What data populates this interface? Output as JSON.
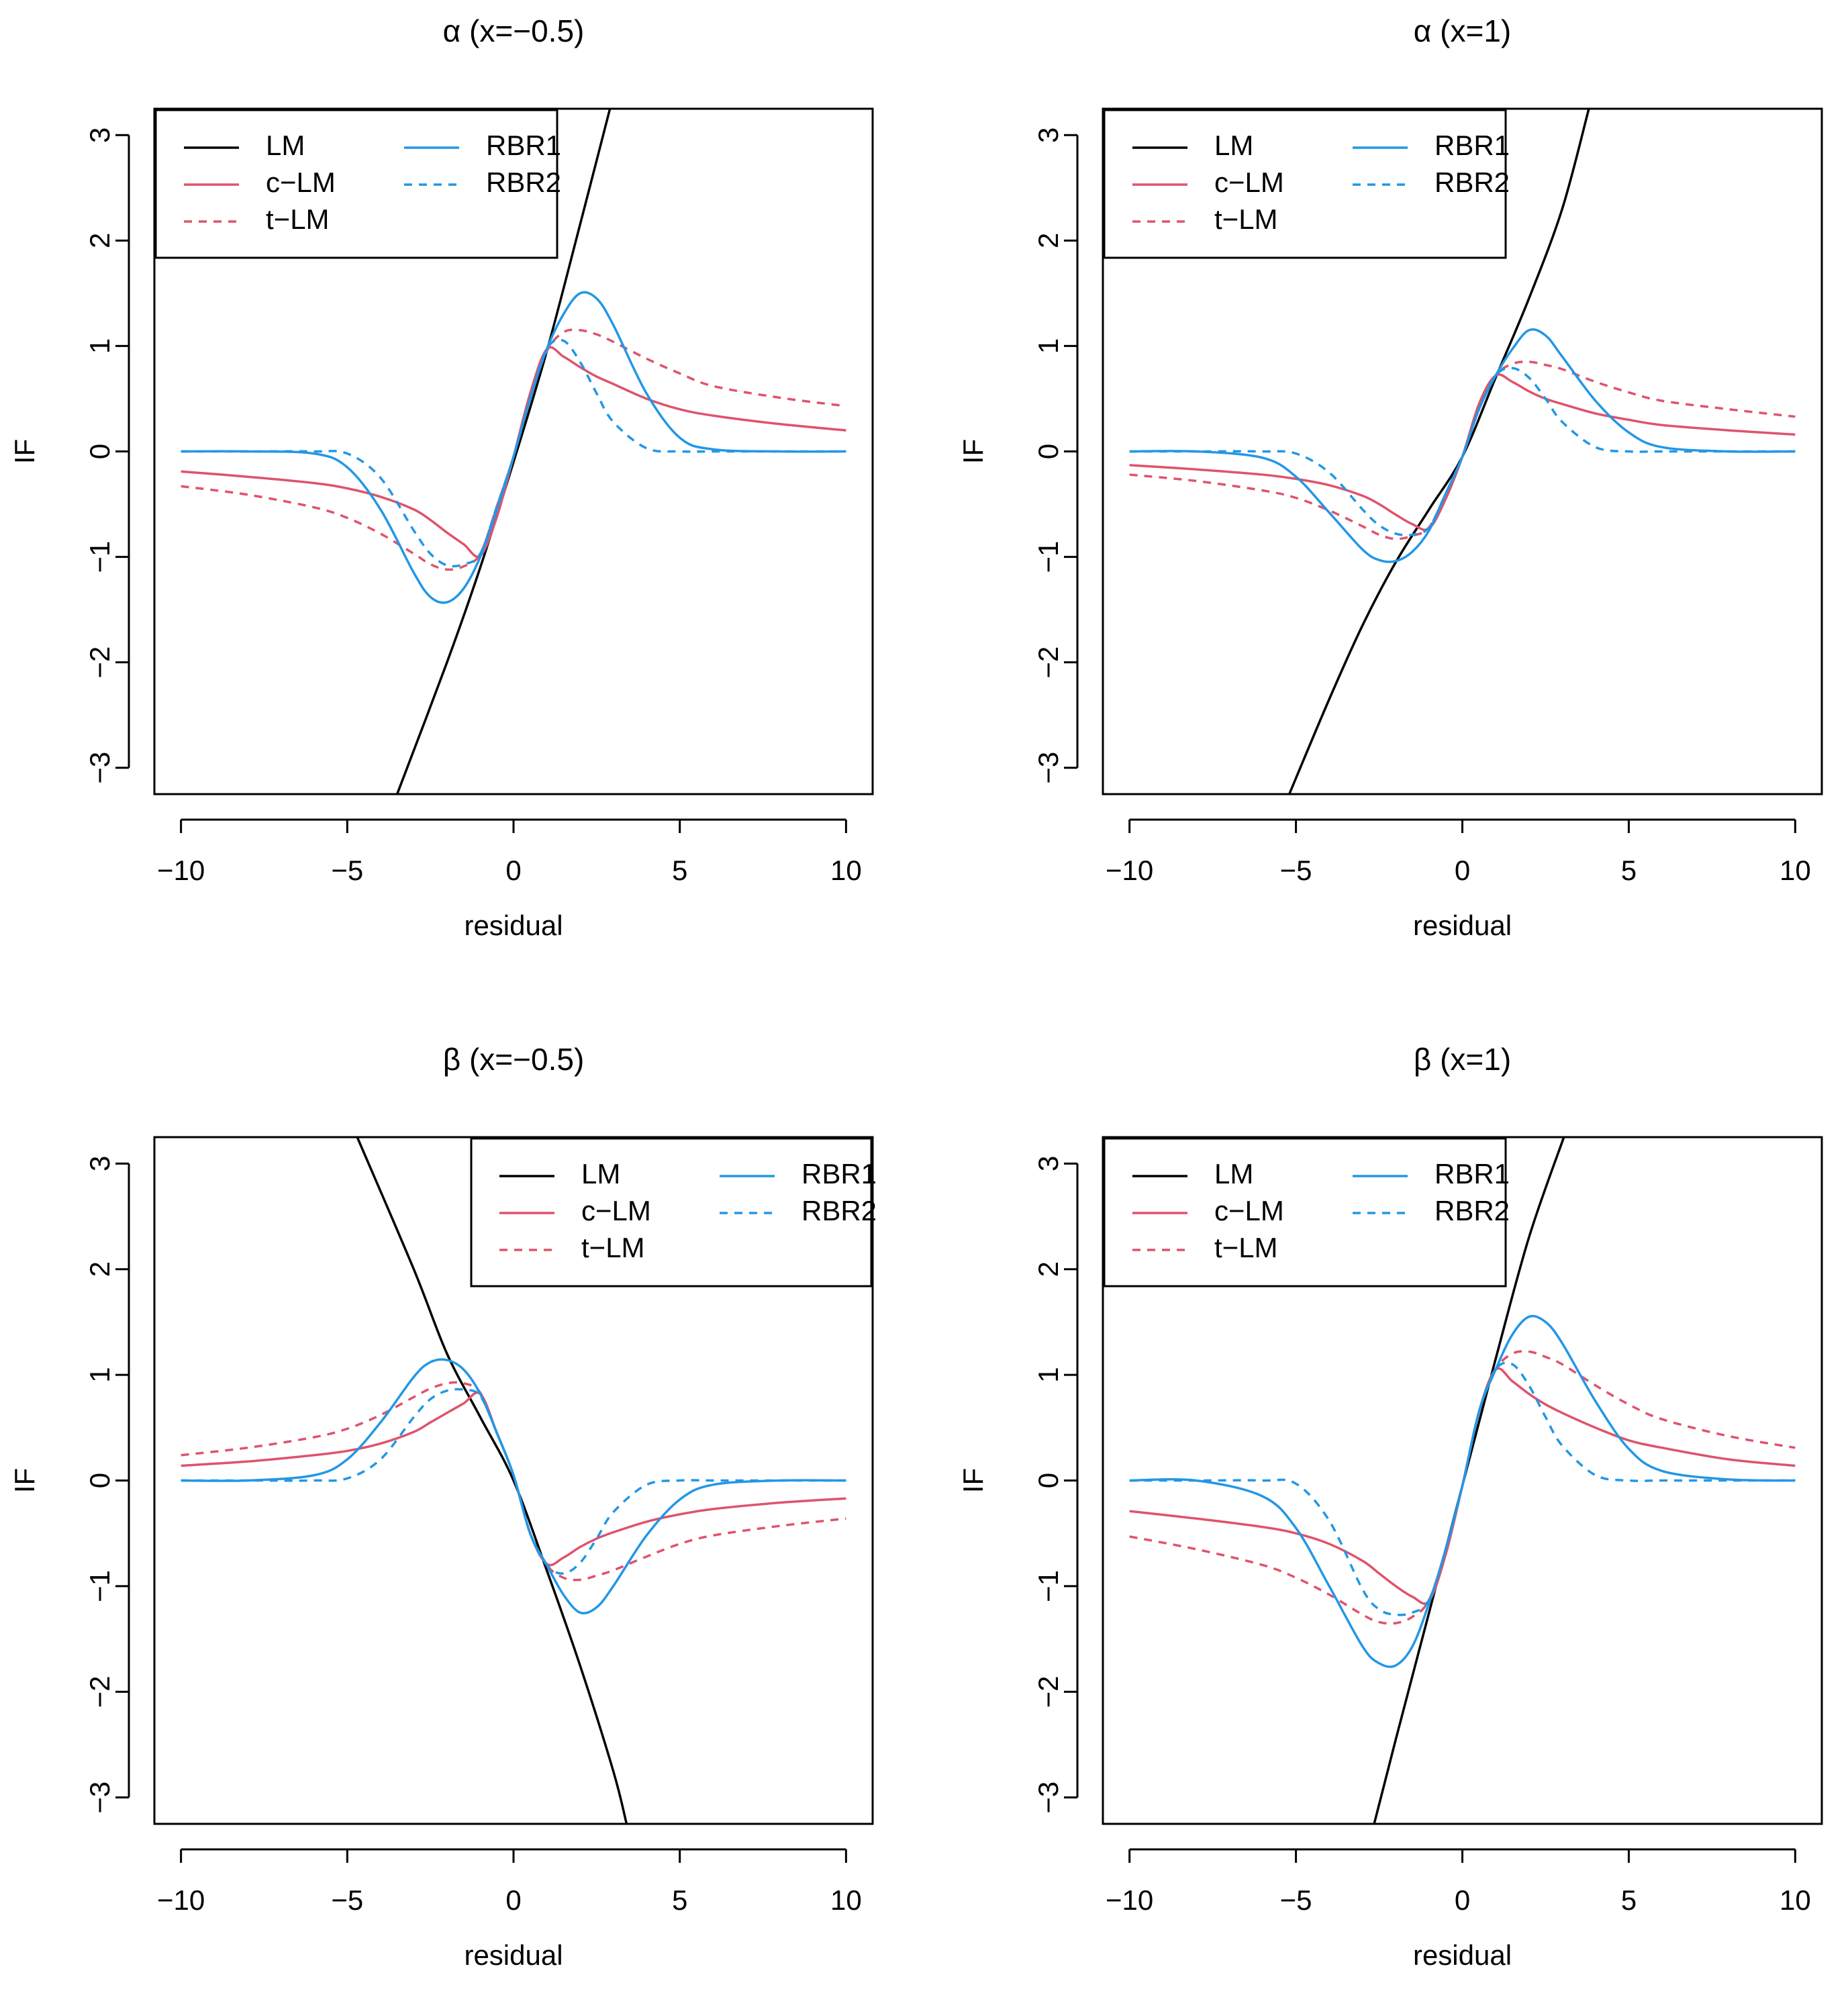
{
  "figure": {
    "xlabel": "residual",
    "ylabel": "IF",
    "xticks": [
      "−10",
      "−5",
      "0",
      "5",
      "10"
    ],
    "yticks": [
      "−3",
      "−2",
      "−1",
      "0",
      "1",
      "2",
      "3"
    ],
    "legend_labels": [
      "LM",
      "c−LM",
      "t−LM",
      "RBR1",
      "RBR2"
    ],
    "colors": {
      "LM": "#000000",
      "cLM": "#DF536B",
      "tLM": "#DF536B",
      "RBR1": "#2297E6",
      "RBR2": "#2297E6"
    }
  },
  "chart_data": [
    {
      "type": "line",
      "title": "α (x=−0.5)",
      "xlabel": "residual",
      "ylabel": "IF",
      "xlim": [
        -10.8,
        10.8
      ],
      "ylim": [
        -3.25,
        3.25
      ],
      "legend": "top-left",
      "x": [
        -10,
        -8,
        -6,
        -5,
        -4,
        -3,
        -2.5,
        -2,
        -1.5,
        -1,
        -0.5,
        0,
        0.5,
        1,
        1.5,
        2,
        2.5,
        3,
        4,
        5,
        6,
        8,
        10
      ],
      "series": [
        {
          "name": "LM",
          "style": "solid",
          "points": [
            [
              -3.5,
              -3.25
            ],
            [
              -2,
              -2.0
            ],
            [
              -1,
              -1.1
            ],
            [
              0,
              -0.1
            ],
            [
              1,
              0.95
            ],
            [
              2,
              2.15
            ],
            [
              2.9,
              3.25
            ]
          ]
        },
        {
          "name": "c−LM",
          "style": "solid",
          "values": [
            -0.19,
            -0.24,
            -0.3,
            -0.35,
            -0.43,
            -0.55,
            -0.65,
            -0.77,
            -0.88,
            -0.99,
            -0.62,
            -0.05,
            0.55,
            0.97,
            0.9,
            0.8,
            0.71,
            0.64,
            0.5,
            0.4,
            0.34,
            0.26,
            0.2
          ]
        },
        {
          "name": "t−LM",
          "style": "dashed",
          "values": [
            -0.33,
            -0.41,
            -0.53,
            -0.63,
            -0.78,
            -0.97,
            -1.07,
            -1.12,
            -1.09,
            -0.97,
            -0.52,
            -0.05,
            0.5,
            0.95,
            1.13,
            1.15,
            1.11,
            1.04,
            0.88,
            0.74,
            0.62,
            0.51,
            0.43
          ]
        },
        {
          "name": "RBR1",
          "style": "solid",
          "values": [
            0,
            0,
            -0.02,
            -0.15,
            -0.55,
            -1.15,
            -1.38,
            -1.43,
            -1.3,
            -1.0,
            -0.55,
            -0.05,
            0.5,
            0.97,
            1.3,
            1.5,
            1.45,
            1.2,
            0.55,
            0.13,
            0.02,
            0,
            0
          ]
        },
        {
          "name": "RBR2",
          "style": "dashed",
          "values": [
            0,
            0,
            0,
            -0.02,
            -0.25,
            -0.75,
            -0.97,
            -1.08,
            -1.07,
            -0.97,
            -0.52,
            -0.05,
            0.5,
            0.97,
            1.05,
            0.85,
            0.55,
            0.28,
            0.03,
            0,
            0,
            0,
            0
          ]
        }
      ]
    },
    {
      "type": "line",
      "title": "α (x=1)",
      "xlabel": "residual",
      "ylabel": "IF",
      "xlim": [
        -10.8,
        10.8
      ],
      "ylim": [
        -3.25,
        3.25
      ],
      "legend": "top-left",
      "x": [
        -10,
        -8,
        -6,
        -5,
        -4,
        -3,
        -2.5,
        -2,
        -1.5,
        -1,
        -0.5,
        0,
        0.5,
        1,
        1.5,
        2,
        2.5,
        3,
        4,
        5,
        6,
        8,
        10
      ],
      "series": [
        {
          "name": "LM",
          "style": "solid",
          "points": [
            [
              -5.2,
              -3.25
            ],
            [
              -4,
              -2.35
            ],
            [
              -3,
              -1.65
            ],
            [
              -2,
              -1.05
            ],
            [
              -1,
              -0.55
            ],
            [
              0,
              -0.05
            ],
            [
              1,
              0.7
            ],
            [
              2,
              1.45
            ],
            [
              3,
              2.3
            ],
            [
              3.8,
              3.25
            ]
          ]
        },
        {
          "name": "c−LM",
          "style": "solid",
          "values": [
            -0.13,
            -0.17,
            -0.22,
            -0.26,
            -0.32,
            -0.42,
            -0.5,
            -0.6,
            -0.69,
            -0.73,
            -0.45,
            -0.05,
            0.45,
            0.72,
            0.66,
            0.57,
            0.5,
            0.45,
            0.36,
            0.3,
            0.25,
            0.2,
            0.16
          ]
        },
        {
          "name": "t−LM",
          "style": "dashed",
          "values": [
            -0.22,
            -0.28,
            -0.37,
            -0.44,
            -0.56,
            -0.71,
            -0.79,
            -0.83,
            -0.8,
            -0.72,
            -0.4,
            -0.05,
            0.4,
            0.72,
            0.83,
            0.85,
            0.82,
            0.78,
            0.66,
            0.56,
            0.48,
            0.4,
            0.33
          ]
        },
        {
          "name": "RBR1",
          "style": "solid",
          "values": [
            0,
            0,
            -0.06,
            -0.24,
            -0.58,
            -0.93,
            -1.03,
            -1.04,
            -0.95,
            -0.75,
            -0.4,
            -0.05,
            0.4,
            0.72,
            0.97,
            1.15,
            1.1,
            0.9,
            0.48,
            0.18,
            0.04,
            0,
            0
          ]
        },
        {
          "name": "RBR2",
          "style": "dashed",
          "values": [
            0,
            0,
            0,
            -0.02,
            -0.2,
            -0.55,
            -0.7,
            -0.78,
            -0.79,
            -0.72,
            -0.4,
            -0.05,
            0.4,
            0.72,
            0.79,
            0.7,
            0.5,
            0.28,
            0.04,
            0,
            0,
            0,
            0
          ]
        }
      ]
    },
    {
      "type": "line",
      "title": "β (x=−0.5)",
      "xlabel": "residual",
      "ylabel": "IF",
      "xlim": [
        -10.8,
        10.8
      ],
      "ylim": [
        -3.25,
        3.25
      ],
      "legend": "top-right",
      "x": [
        -10,
        -8,
        -6,
        -5,
        -4,
        -3,
        -2.5,
        -2,
        -1.5,
        -1,
        -0.5,
        0,
        0.5,
        1,
        1.5,
        2,
        2.5,
        3,
        4,
        5,
        6,
        8,
        10
      ],
      "series": [
        {
          "name": "LM",
          "style": "solid",
          "points": [
            [
              -4.7,
              3.25
            ],
            [
              -3,
              2.0
            ],
            [
              -2,
              1.2
            ],
            [
              -1,
              0.6
            ],
            [
              0,
              0.0
            ],
            [
              1,
              -0.85
            ],
            [
              2,
              -1.75
            ],
            [
              3,
              -2.75
            ],
            [
              3.4,
              -3.25
            ]
          ]
        },
        {
          "name": "c−LM",
          "style": "solid",
          "values": [
            0.14,
            0.18,
            0.24,
            0.28,
            0.35,
            0.46,
            0.55,
            0.64,
            0.73,
            0.82,
            0.45,
            0.05,
            -0.5,
            -0.79,
            -0.73,
            -0.63,
            -0.55,
            -0.49,
            -0.39,
            -0.32,
            -0.27,
            -0.21,
            -0.17
          ]
        },
        {
          "name": "t−LM",
          "style": "dashed",
          "values": [
            0.24,
            0.31,
            0.41,
            0.49,
            0.62,
            0.79,
            0.87,
            0.92,
            0.92,
            0.83,
            0.45,
            0.05,
            -0.5,
            -0.8,
            -0.92,
            -0.94,
            -0.9,
            -0.85,
            -0.72,
            -0.6,
            -0.52,
            -0.43,
            -0.36
          ]
        },
        {
          "name": "RBR1",
          "style": "solid",
          "values": [
            0,
            0,
            0.05,
            0.2,
            0.55,
            0.98,
            1.12,
            1.14,
            1.05,
            0.82,
            0.45,
            0.05,
            -0.5,
            -0.8,
            -1.08,
            -1.25,
            -1.2,
            -1.0,
            -0.52,
            -0.18,
            -0.04,
            0,
            0
          ]
        },
        {
          "name": "RBR2",
          "style": "dashed",
          "values": [
            0,
            0,
            0,
            0.02,
            0.2,
            0.6,
            0.77,
            0.85,
            0.86,
            0.8,
            0.45,
            0.05,
            -0.5,
            -0.8,
            -0.88,
            -0.78,
            -0.55,
            -0.3,
            -0.04,
            0,
            0,
            0,
            0
          ]
        }
      ]
    },
    {
      "type": "line",
      "title": "β (x=1)",
      "xlabel": "residual",
      "ylabel": "IF",
      "xlim": [
        -10.8,
        10.8
      ],
      "ylim": [
        -3.25,
        3.25
      ],
      "legend": "top-left",
      "x": [
        -10,
        -8,
        -6,
        -5,
        -4,
        -3,
        -2.5,
        -2,
        -1.5,
        -1,
        -0.5,
        0,
        0.5,
        1,
        1.5,
        2,
        2.5,
        3,
        4,
        5,
        6,
        8,
        10
      ],
      "series": [
        {
          "name": "LM",
          "style": "solid",
          "points": [
            [
              -2.65,
              -3.25
            ],
            [
              -2,
              -2.45
            ],
            [
              -1,
              -1.25
            ],
            [
              0,
              -0.05
            ],
            [
              1,
              1.15
            ],
            [
              2,
              2.3
            ],
            [
              3.05,
              3.25
            ]
          ]
        },
        {
          "name": "c−LM",
          "style": "solid",
          "values": [
            -0.29,
            -0.36,
            -0.44,
            -0.5,
            -0.6,
            -0.76,
            -0.88,
            -1.0,
            -1.1,
            -1.14,
            -0.7,
            -0.05,
            0.65,
            1.05,
            0.94,
            0.82,
            0.72,
            0.64,
            0.5,
            0.38,
            0.31,
            0.2,
            0.14
          ]
        },
        {
          "name": "t−LM",
          "style": "dashed",
          "values": [
            -0.53,
            -0.65,
            -0.8,
            -0.92,
            -1.08,
            -1.27,
            -1.34,
            -1.35,
            -1.29,
            -1.13,
            -0.65,
            -0.05,
            0.65,
            1.05,
            1.2,
            1.22,
            1.17,
            1.1,
            0.9,
            0.72,
            0.58,
            0.42,
            0.31
          ]
        },
        {
          "name": "RBR1",
          "style": "solid",
          "values": [
            0,
            0,
            -0.15,
            -0.45,
            -1.0,
            -1.57,
            -1.73,
            -1.75,
            -1.57,
            -1.16,
            -0.65,
            -0.05,
            0.65,
            1.05,
            1.38,
            1.55,
            1.5,
            1.3,
            0.75,
            0.3,
            0.09,
            0.01,
            0
          ]
        },
        {
          "name": "RBR2",
          "style": "dashed",
          "values": [
            0,
            0,
            0,
            -0.03,
            -0.38,
            -1.03,
            -1.22,
            -1.27,
            -1.25,
            -1.13,
            -0.65,
            -0.05,
            0.65,
            1.05,
            1.1,
            0.9,
            0.6,
            0.33,
            0.05,
            0,
            0,
            0,
            0
          ]
        }
      ]
    }
  ]
}
